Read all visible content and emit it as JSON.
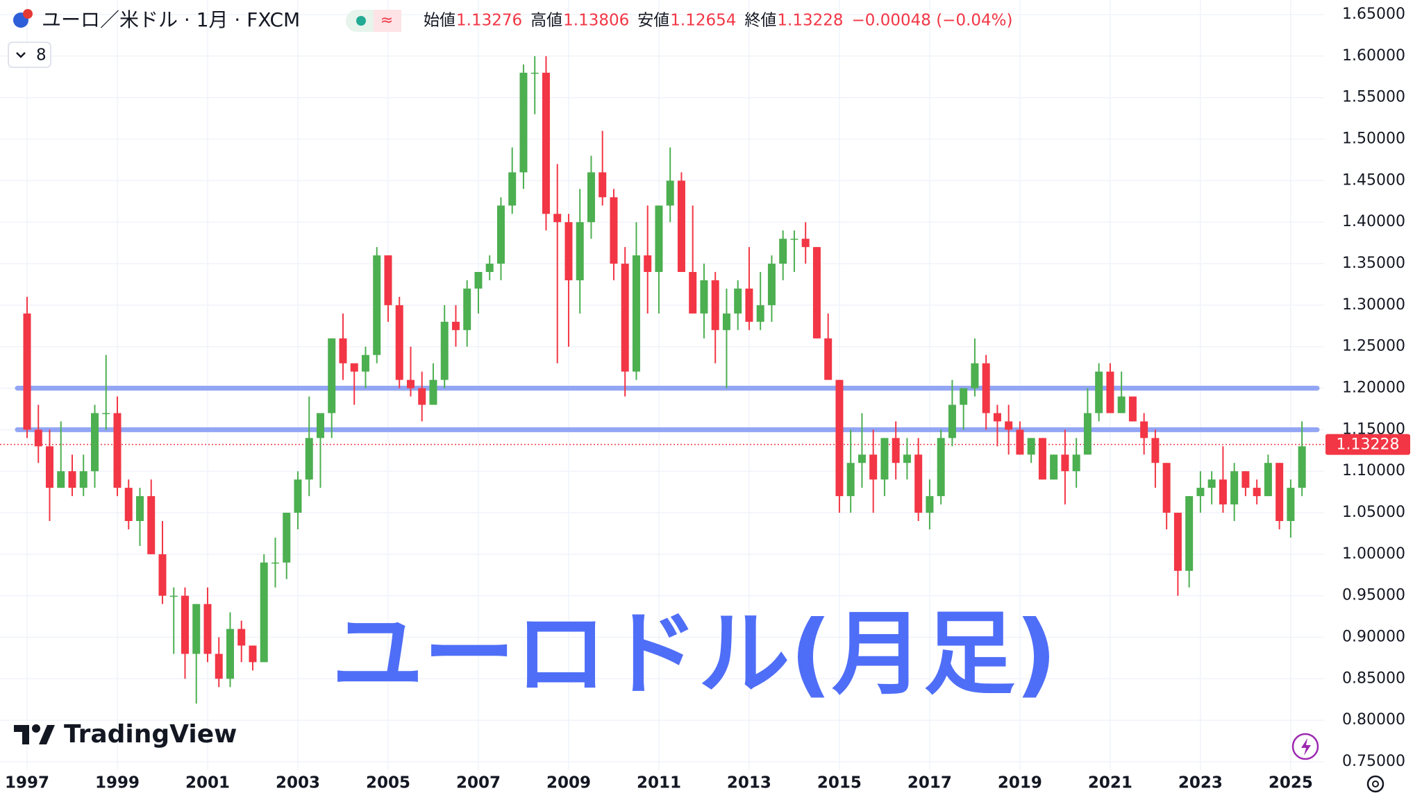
{
  "chart_data": {
    "type": "candlestick",
    "title": "ユーロ／米ドル · 1月 · FXCM",
    "ohlc": [
      {
        "label": "始値",
        "value": 1.13276
      },
      {
        "label": "高値",
        "value": 1.13806
      },
      {
        "label": "安値",
        "value": 1.12654
      },
      {
        "label": "終値",
        "value": 1.13228
      }
    ],
    "change": "−0.00048 (−0.04%)",
    "interval_button": "8",
    "watermark": "ユーロドル(月足)",
    "brand": "TradingView",
    "up_color": "#4caf50",
    "down_color": "#f23645",
    "hlines": [
      1.2,
      1.15
    ],
    "hline_color": "#93a6f4",
    "grid": true,
    "xlim": [
      1996.4,
      2025.74
    ],
    "xticks": [
      1997,
      1999,
      2001,
      2003,
      2005,
      2007,
      2009,
      2011,
      2013,
      2015,
      2017,
      2019,
      2021,
      2023,
      2025
    ],
    "ylim": [
      0.74,
      1.6676
    ],
    "yticks": [
      {
        "value": 0.75,
        "label": "0.75000"
      },
      {
        "value": 0.8,
        "label": "0.80000"
      },
      {
        "value": 0.85,
        "label": "0.85000"
      },
      {
        "value": 0.9,
        "label": "0.90000"
      },
      {
        "value": 0.95,
        "label": "0.95000"
      },
      {
        "value": 1.0,
        "label": "1.00000"
      },
      {
        "value": 1.05,
        "label": "1.05000"
      },
      {
        "value": 1.1,
        "label": "1.10000"
      },
      {
        "value": 1.15,
        "label": "1.15000"
      },
      {
        "value": 1.2,
        "label": "1.20000"
      },
      {
        "value": 1.25,
        "label": "1.25000"
      },
      {
        "value": 1.3,
        "label": "1.30000"
      },
      {
        "value": 1.35,
        "label": "1.35000"
      },
      {
        "value": 1.4,
        "label": "1.40000"
      },
      {
        "value": 1.45,
        "label": "1.45000"
      },
      {
        "value": 1.5,
        "label": "1.50000"
      },
      {
        "value": 1.55,
        "label": "1.55000"
      },
      {
        "value": 1.6,
        "label": "1.60000"
      },
      {
        "value": 1.65,
        "label": "1.65000"
      }
    ],
    "x": [
      1997.0,
      1997.25,
      1997.5,
      1997.75,
      1998.0,
      1998.25,
      1998.5,
      1998.75,
      1999.0,
      1999.25,
      1999.5,
      1999.75,
      2000.0,
      2000.25,
      2000.5,
      2000.75,
      2001.0,
      2001.25,
      2001.5,
      2001.75,
      2002.0,
      2002.25,
      2002.5,
      2002.75,
      2003.0,
      2003.25,
      2003.5,
      2003.75,
      2004.0,
      2004.25,
      2004.5,
      2004.75,
      2005.0,
      2005.25,
      2005.5,
      2005.75,
      2006.0,
      2006.25,
      2006.5,
      2006.75,
      2007.0,
      2007.25,
      2007.5,
      2007.75,
      2008.0,
      2008.25,
      2008.5,
      2008.75,
      2009.0,
      2009.25,
      2009.5,
      2009.75,
      2010.0,
      2010.25,
      2010.5,
      2010.75,
      2011.0,
      2011.25,
      2011.5,
      2011.75,
      2012.0,
      2012.25,
      2012.5,
      2012.75,
      2013.0,
      2013.25,
      2013.5,
      2013.75,
      2014.0,
      2014.25,
      2014.5,
      2014.75,
      2015.0,
      2015.25,
      2015.5,
      2015.75,
      2016.0,
      2016.25,
      2016.5,
      2016.75,
      2017.0,
      2017.25,
      2017.5,
      2017.75,
      2018.0,
      2018.25,
      2018.5,
      2018.75,
      2019.0,
      2019.25,
      2019.5,
      2019.75,
      2020.0,
      2020.25,
      2020.5,
      2020.75,
      2021.0,
      2021.25,
      2021.5,
      2021.75,
      2022.0,
      2022.25,
      2022.5,
      2022.75,
      2023.0,
      2023.25,
      2023.5,
      2023.75,
      2024.0,
      2024.25,
      2024.5,
      2024.75,
      2025.0,
      2025.25
    ],
    "open": [
      1.29,
      1.15,
      1.13,
      1.08,
      1.1,
      1.08,
      1.1,
      1.17,
      1.17,
      1.08,
      1.04,
      1.07,
      1.0,
      0.95,
      0.95,
      0.88,
      0.94,
      0.88,
      0.85,
      0.91,
      0.89,
      0.87,
      0.99,
      0.99,
      1.05,
      1.09,
      1.14,
      1.17,
      1.26,
      1.23,
      1.22,
      1.24,
      1.36,
      1.3,
      1.21,
      1.2,
      1.18,
      1.21,
      1.28,
      1.27,
      1.32,
      1.34,
      1.35,
      1.42,
      1.46,
      1.58,
      1.58,
      1.41,
      1.4,
      1.33,
      1.4,
      1.46,
      1.43,
      1.35,
      1.22,
      1.36,
      1.34,
      1.42,
      1.45,
      1.34,
      1.29,
      1.33,
      1.27,
      1.29,
      1.32,
      1.28,
      1.3,
      1.35,
      1.38,
      1.38,
      1.37,
      1.26,
      1.21,
      1.07,
      1.11,
      1.12,
      1.09,
      1.14,
      1.11,
      1.12,
      1.05,
      1.07,
      1.14,
      1.18,
      1.2,
      1.23,
      1.17,
      1.16,
      1.15,
      1.12,
      1.14,
      1.09,
      1.12,
      1.1,
      1.12,
      1.17,
      1.22,
      1.17,
      1.19,
      1.16,
      1.14,
      1.11,
      1.05,
      0.98,
      1.07,
      1.08,
      1.09,
      1.06,
      1.1,
      1.08,
      1.07,
      1.11,
      1.04,
      1.08
    ],
    "high": [
      1.31,
      1.18,
      1.15,
      1.16,
      1.12,
      1.12,
      1.18,
      1.24,
      1.19,
      1.09,
      1.08,
      1.09,
      1.04,
      0.96,
      0.96,
      0.94,
      0.96,
      0.9,
      0.93,
      0.92,
      0.89,
      1.0,
      1.02,
      1.05,
      1.1,
      1.19,
      1.17,
      1.26,
      1.29,
      1.23,
      1.25,
      1.37,
      1.36,
      1.31,
      1.25,
      1.22,
      1.23,
      1.3,
      1.3,
      1.33,
      1.34,
      1.36,
      1.43,
      1.49,
      1.59,
      1.6,
      1.6,
      1.47,
      1.41,
      1.44,
      1.48,
      1.51,
      1.44,
      1.37,
      1.4,
      1.42,
      1.42,
      1.49,
      1.46,
      1.42,
      1.35,
      1.34,
      1.32,
      1.33,
      1.37,
      1.34,
      1.36,
      1.39,
      1.39,
      1.4,
      1.37,
      1.29,
      1.21,
      1.15,
      1.17,
      1.15,
      1.14,
      1.16,
      1.14,
      1.14,
      1.09,
      1.15,
      1.21,
      1.2,
      1.26,
      1.24,
      1.18,
      1.18,
      1.16,
      1.14,
      1.14,
      1.12,
      1.15,
      1.14,
      1.2,
      1.23,
      1.23,
      1.22,
      1.19,
      1.17,
      1.15,
      1.11,
      1.05,
      1.07,
      1.1,
      1.1,
      1.13,
      1.11,
      1.1,
      1.09,
      1.12,
      1.11,
      1.09,
      1.16
    ],
    "low": [
      1.14,
      1.11,
      1.04,
      1.08,
      1.07,
      1.07,
      1.08,
      1.15,
      1.07,
      1.03,
      1.01,
      1.0,
      0.94,
      0.88,
      0.85,
      0.82,
      0.87,
      0.84,
      0.84,
      0.87,
      0.86,
      0.87,
      0.96,
      0.97,
      1.03,
      1.07,
      1.08,
      1.14,
      1.21,
      1.18,
      1.2,
      1.23,
      1.28,
      1.2,
      1.19,
      1.16,
      1.18,
      1.2,
      1.25,
      1.25,
      1.29,
      1.33,
      1.33,
      1.41,
      1.44,
      1.53,
      1.39,
      1.23,
      1.25,
      1.29,
      1.38,
      1.42,
      1.33,
      1.19,
      1.21,
      1.29,
      1.29,
      1.4,
      1.34,
      1.29,
      1.26,
      1.23,
      1.2,
      1.27,
      1.27,
      1.27,
      1.28,
      1.33,
      1.34,
      1.35,
      1.26,
      1.21,
      1.05,
      1.05,
      1.08,
      1.05,
      1.07,
      1.09,
      1.09,
      1.04,
      1.03,
      1.06,
      1.13,
      1.15,
      1.19,
      1.15,
      1.13,
      1.12,
      1.12,
      1.11,
      1.09,
      1.09,
      1.06,
      1.08,
      1.12,
      1.16,
      1.17,
      1.17,
      1.16,
      1.12,
      1.08,
      1.03,
      0.95,
      0.96,
      1.05,
      1.06,
      1.05,
      1.04,
      1.07,
      1.06,
      1.07,
      1.03,
      1.02,
      1.07
    ],
    "close": [
      1.15,
      1.13,
      1.08,
      1.1,
      1.08,
      1.1,
      1.17,
      1.17,
      1.08,
      1.04,
      1.07,
      1.0,
      0.95,
      0.95,
      0.88,
      0.94,
      0.88,
      0.85,
      0.91,
      0.89,
      0.87,
      0.99,
      0.99,
      1.05,
      1.09,
      1.14,
      1.17,
      1.26,
      1.23,
      1.22,
      1.24,
      1.36,
      1.3,
      1.21,
      1.2,
      1.18,
      1.21,
      1.28,
      1.27,
      1.32,
      1.34,
      1.35,
      1.42,
      1.46,
      1.58,
      1.58,
      1.41,
      1.4,
      1.33,
      1.4,
      1.46,
      1.43,
      1.35,
      1.22,
      1.36,
      1.34,
      1.42,
      1.45,
      1.34,
      1.29,
      1.33,
      1.27,
      1.29,
      1.32,
      1.28,
      1.3,
      1.35,
      1.38,
      1.38,
      1.37,
      1.26,
      1.21,
      1.07,
      1.11,
      1.12,
      1.09,
      1.14,
      1.11,
      1.12,
      1.05,
      1.07,
      1.14,
      1.18,
      1.2,
      1.23,
      1.17,
      1.16,
      1.15,
      1.12,
      1.14,
      1.09,
      1.12,
      1.1,
      1.12,
      1.17,
      1.22,
      1.17,
      1.19,
      1.16,
      1.14,
      1.11,
      1.05,
      0.98,
      1.07,
      1.08,
      1.09,
      1.06,
      1.1,
      1.08,
      1.07,
      1.11,
      1.04,
      1.08,
      1.13
    ]
  }
}
